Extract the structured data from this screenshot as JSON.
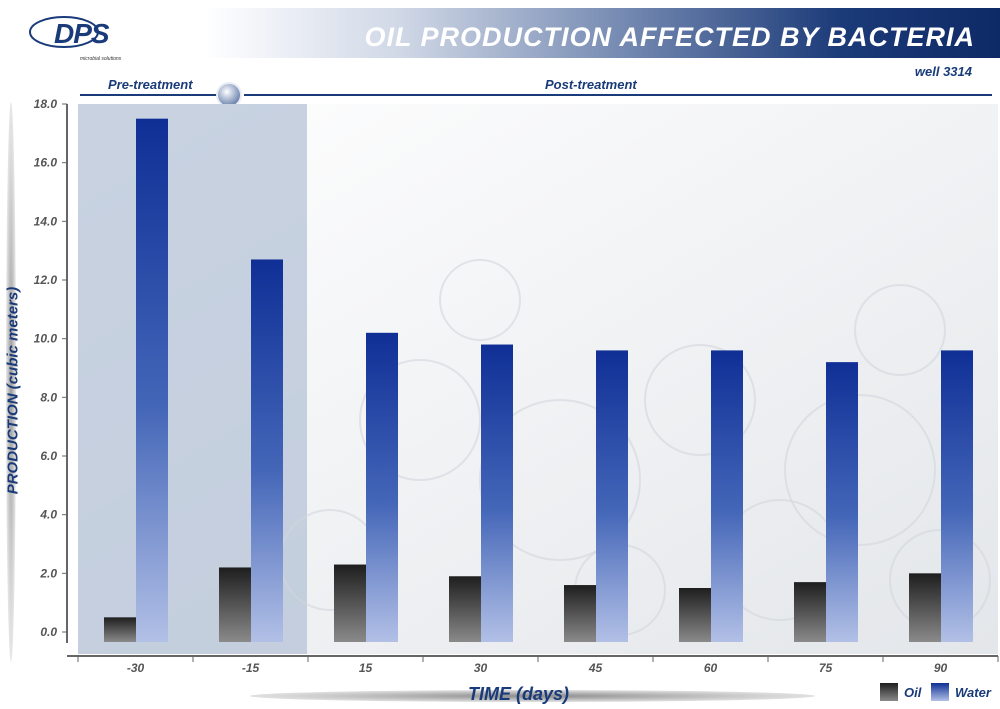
{
  "header": {
    "title": "OIL PRODUCTION AFFECTED BY BACTERIA",
    "subtitle": "well 3314",
    "logo_text": "DPS",
    "logo_subtext": "microbial solutions"
  },
  "phases": {
    "pre": "Pre-treatment",
    "post": "Post-treatment"
  },
  "colors": {
    "oil": "#2b2b2b",
    "water": "#1a3b9a",
    "accent": "#1a3b7a",
    "pre_shade": "#b6c3d7"
  },
  "chart_data": {
    "type": "bar",
    "title": "OIL PRODUCTION AFFECTED BY BACTERIA",
    "xlabel": "TIME (days)",
    "ylabel": "PRODUCTION (cubic meters)",
    "categories": [
      "-30",
      "-15",
      "15",
      "30",
      "45",
      "60",
      "75",
      "90"
    ],
    "series": [
      {
        "name": "Oil",
        "values": [
          0.5,
          2.2,
          2.3,
          1.9,
          1.6,
          1.5,
          1.7,
          2.0
        ]
      },
      {
        "name": "Water",
        "values": [
          17.5,
          12.7,
          10.2,
          9.8,
          9.6,
          9.6,
          9.2,
          9.6
        ]
      }
    ],
    "ylim": [
      0,
      18
    ],
    "yticks": [
      "0.0",
      "2.0",
      "4.0",
      "6.0",
      "8.0",
      "10.0",
      "12.0",
      "14.0",
      "16.0",
      "18.0"
    ],
    "legend_position": "bottom-right",
    "grid": false
  }
}
